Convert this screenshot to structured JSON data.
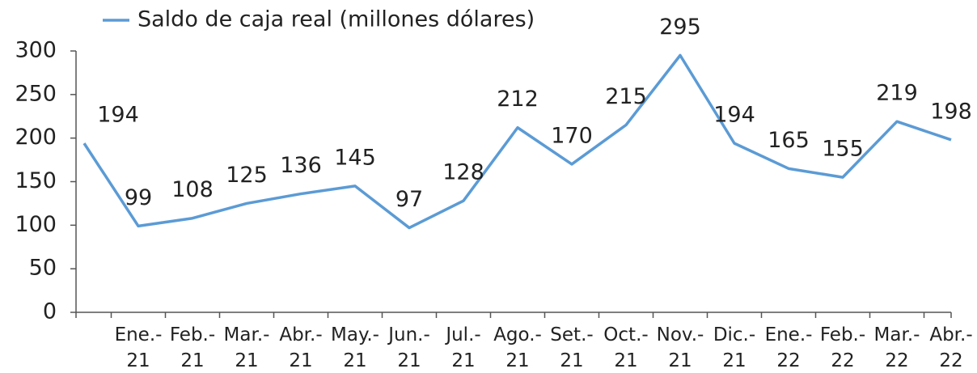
{
  "chart_data": {
    "type": "line",
    "categories": [
      null,
      "Ene.- 21",
      "Feb.- 21",
      "Mar.- 21",
      "Abr.- 21",
      "May.- 21",
      "Jun.- 21",
      "Jul.- 21",
      "Ago.- 21",
      "Set.- 21",
      "Oct.- 21",
      "Nov.- 21",
      "Dic.- 21",
      "Ene.- 22",
      "Feb.- 22",
      "Mar.- 22",
      "Abr.- 22"
    ],
    "series": [
      {
        "name": "Saldo de caja real (millones dólares)",
        "color": "#5b9bd5",
        "values": [
          194,
          99,
          108,
          125,
          136,
          145,
          97,
          128,
          212,
          170,
          215,
          295,
          194,
          165,
          155,
          219,
          198
        ]
      }
    ],
    "ylim": [
      0,
      300
    ],
    "yticks": [
      0,
      50,
      100,
      150,
      200,
      250,
      300
    ],
    "grid": false,
    "legend": "top"
  }
}
